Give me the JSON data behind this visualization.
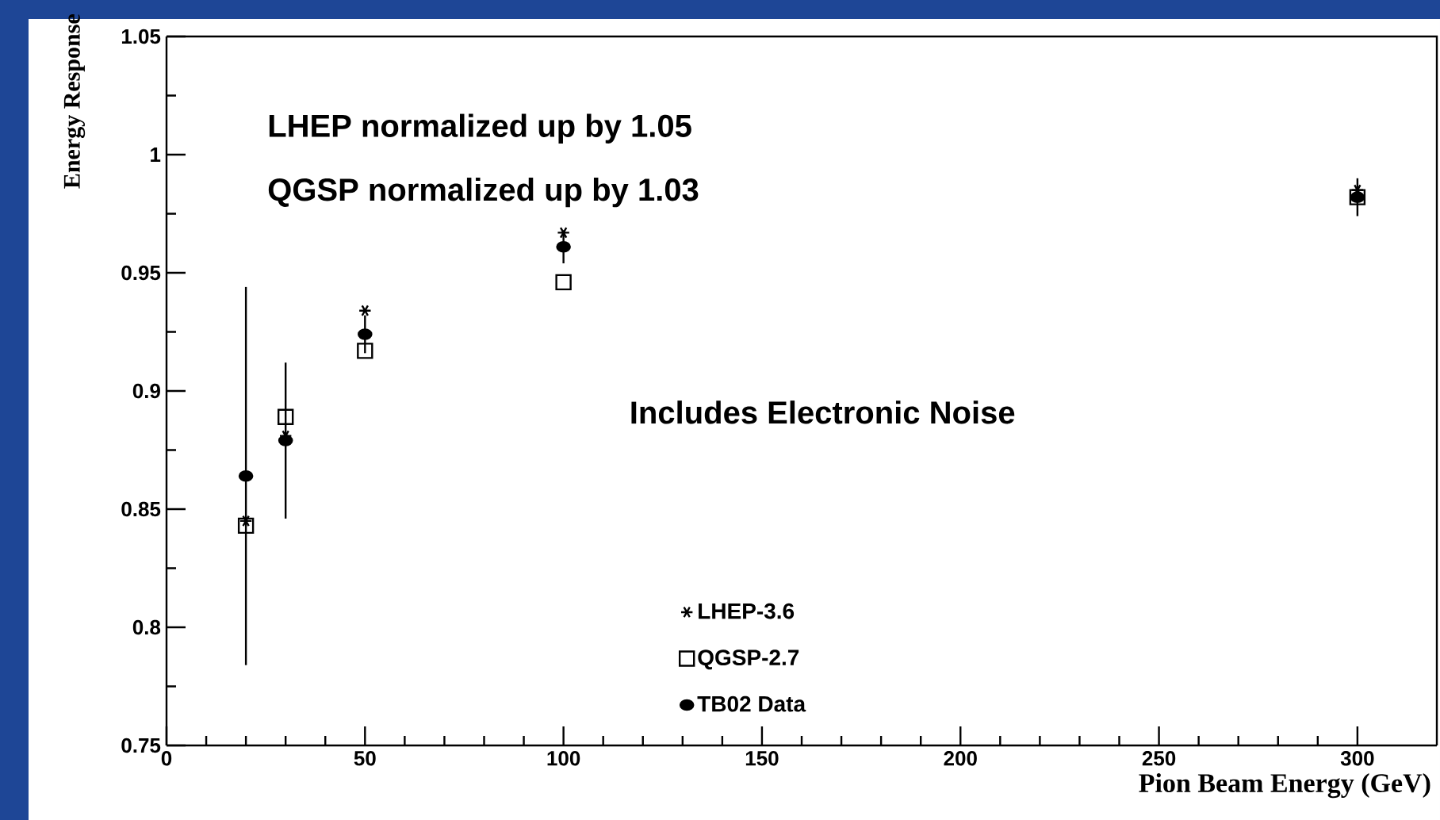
{
  "chart_data": {
    "type": "scatter",
    "xlabel": "Pion Beam Energy (GeV)",
    "ylabel": "Energy Response",
    "x": [
      20,
      30,
      50,
      100,
      300
    ],
    "xlim": [
      0,
      320
    ],
    "xticks": [
      0,
      50,
      100,
      150,
      200,
      250,
      300
    ],
    "ylim": [
      0.75,
      1.05
    ],
    "yticks": [
      0.75,
      0.8,
      0.85,
      0.9,
      0.95,
      1,
      1.05
    ],
    "grid": false,
    "legend": "bottom right",
    "annotations": [
      "LHEP normalized up by 1.05",
      "QGSP normalized up by 1.03",
      "Includes Electronic Noise"
    ],
    "series": [
      {
        "name": "LHEP-3.6",
        "color": "#000000",
        "marker": "cross",
        "values": [
          0.845,
          0.881,
          0.934,
          0.967,
          0.985
        ]
      },
      {
        "name": "QGSP-2.7",
        "color": "#000000",
        "marker": "square",
        "values": [
          0.843,
          0.889,
          0.917,
          0.946,
          0.982
        ]
      },
      {
        "name": "TB02 Data",
        "color": "#000000",
        "marker": "circle",
        "values": [
          0.864,
          0.879,
          0.924,
          0.961,
          0.982
        ],
        "errors": [
          0.08,
          0.033,
          0.008,
          0.007,
          0.008
        ]
      }
    ]
  }
}
